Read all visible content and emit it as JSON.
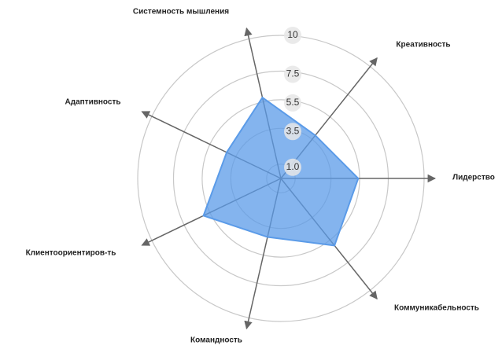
{
  "chart_data": {
    "type": "radar",
    "categories": [
      "Системность мышления",
      "Креативность",
      "Лидерство",
      "Коммуникабельность",
      "Командность",
      "Клиентоориентиров-ть",
      "Адаптивность"
    ],
    "values": [
      5.8,
      3.85,
      5.4,
      6.0,
      4.2,
      6.0,
      4.2
    ],
    "color": "#5b9be8",
    "rlim": [
      0,
      10
    ],
    "rticks": [
      {
        "value": 1,
        "label": "1.0"
      },
      3.5,
      5.5,
      7.5,
      10
    ],
    "grid": true
  }
}
